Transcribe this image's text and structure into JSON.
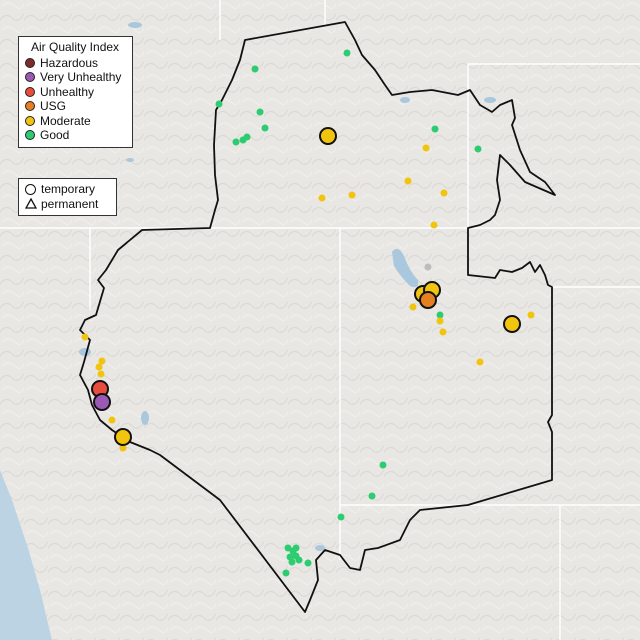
{
  "legend": {
    "title": "Air Quality Index",
    "categories": [
      {
        "label": "Hazardous",
        "color": "#7e2b2b"
      },
      {
        "label": "Very Unhealthy",
        "color": "#9b59b6"
      },
      {
        "label": "Unhealthy",
        "color": "#e74c3c"
      },
      {
        "label": "USG",
        "color": "#e67e22"
      },
      {
        "label": "Moderate",
        "color": "#f1c40f"
      },
      {
        "label": "Good",
        "color": "#2ecc71"
      }
    ],
    "monitor_types": [
      {
        "label": "temporary",
        "shape": "circle"
      },
      {
        "label": "permanent",
        "shape": "triangle"
      }
    ]
  },
  "colors": {
    "land": "#e9e7e4",
    "ocean": "#bcd3e3",
    "lake": "#a9c7dd",
    "border": "#111111",
    "state_line": "#ffffff"
  }
}
